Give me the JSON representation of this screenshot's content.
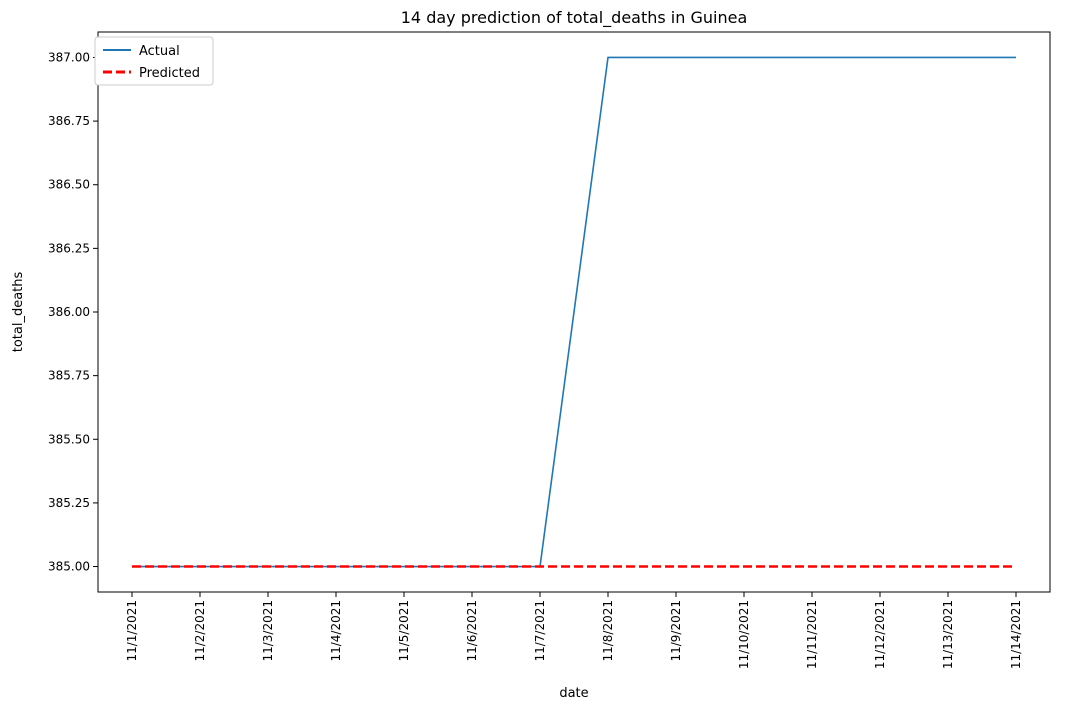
{
  "chart_data": {
    "type": "line",
    "title": "14 day prediction of total_deaths in Guinea",
    "xlabel": "date",
    "ylabel": "total_deaths",
    "x": [
      "11/1/2021",
      "11/2/2021",
      "11/3/2021",
      "11/4/2021",
      "11/5/2021",
      "11/6/2021",
      "11/7/2021",
      "11/8/2021",
      "11/9/2021",
      "11/10/2021",
      "11/11/2021",
      "11/12/2021",
      "11/13/2021",
      "11/14/2021"
    ],
    "series": [
      {
        "name": "Actual",
        "color": "#1f77b4",
        "style": "solid",
        "values": [
          385,
          385,
          385,
          385,
          385,
          385,
          385,
          387,
          387,
          387,
          387,
          387,
          387,
          387
        ]
      },
      {
        "name": "Predicted",
        "color": "#ff0000",
        "style": "dashed",
        "values": [
          385,
          385,
          385,
          385,
          385,
          385,
          385,
          385,
          385,
          385,
          385,
          385,
          385,
          385
        ]
      }
    ],
    "yticks": [
      "385.00",
      "385.25",
      "385.50",
      "385.75",
      "386.00",
      "386.25",
      "386.50",
      "386.75",
      "387.00"
    ],
    "ylim": [
      384.9,
      387.1
    ],
    "legend": "top-left",
    "grid": false
  }
}
